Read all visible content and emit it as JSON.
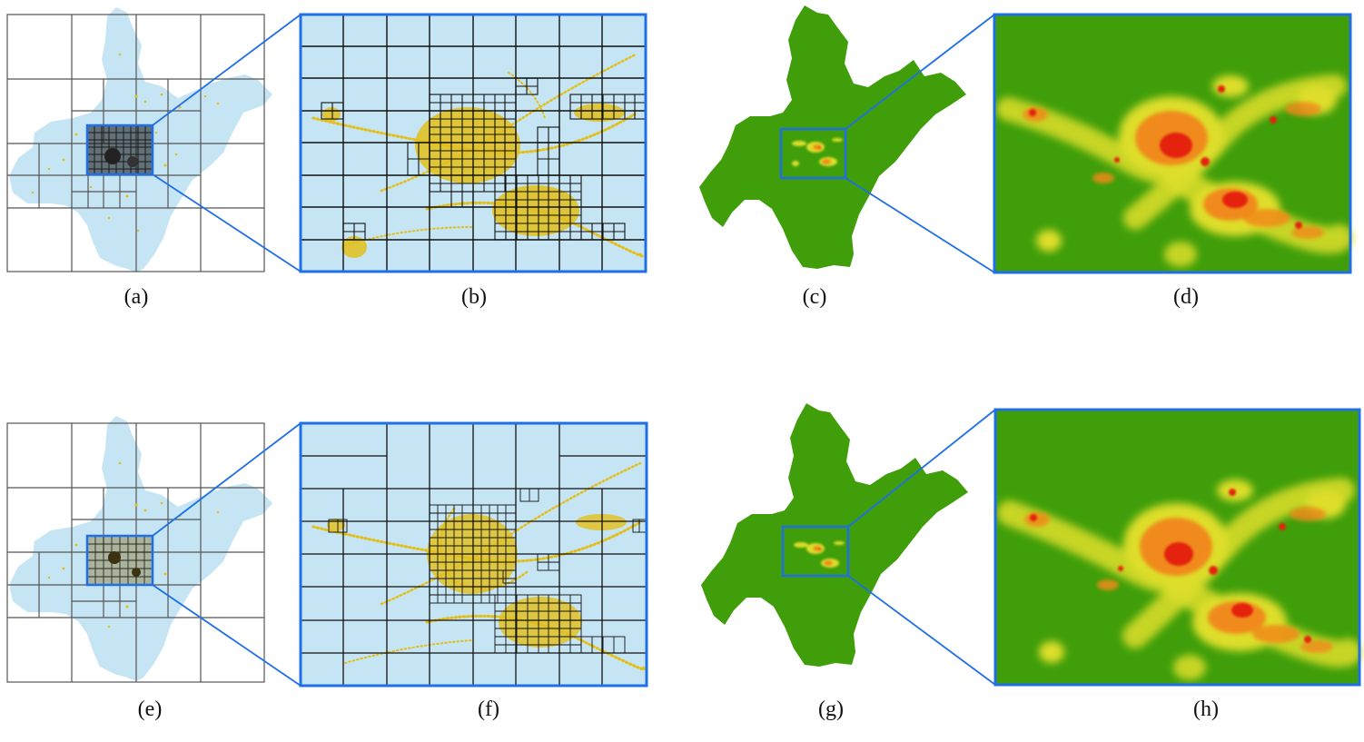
{
  "panels": [
    {
      "id": "a",
      "label": "(a)"
    },
    {
      "id": "b",
      "label": "(b)"
    },
    {
      "id": "c",
      "label": "(c)"
    },
    {
      "id": "d",
      "label": "(d)"
    },
    {
      "id": "e",
      "label": "(e)"
    },
    {
      "id": "f",
      "label": "(f)"
    },
    {
      "id": "g",
      "label": "(g)"
    },
    {
      "id": "h",
      "label": "(h)"
    }
  ],
  "colors": {
    "map_fill": "#c5e4f4",
    "points": "#e3bf18",
    "grid_lines": "#111111",
    "outer_grid": "#555555",
    "zoom_frame": "#1f6fe8",
    "density_background": "#3f9e0a",
    "density_low": "#dede2a",
    "density_mid": "#f08a1a",
    "density_high": "#e42010"
  }
}
